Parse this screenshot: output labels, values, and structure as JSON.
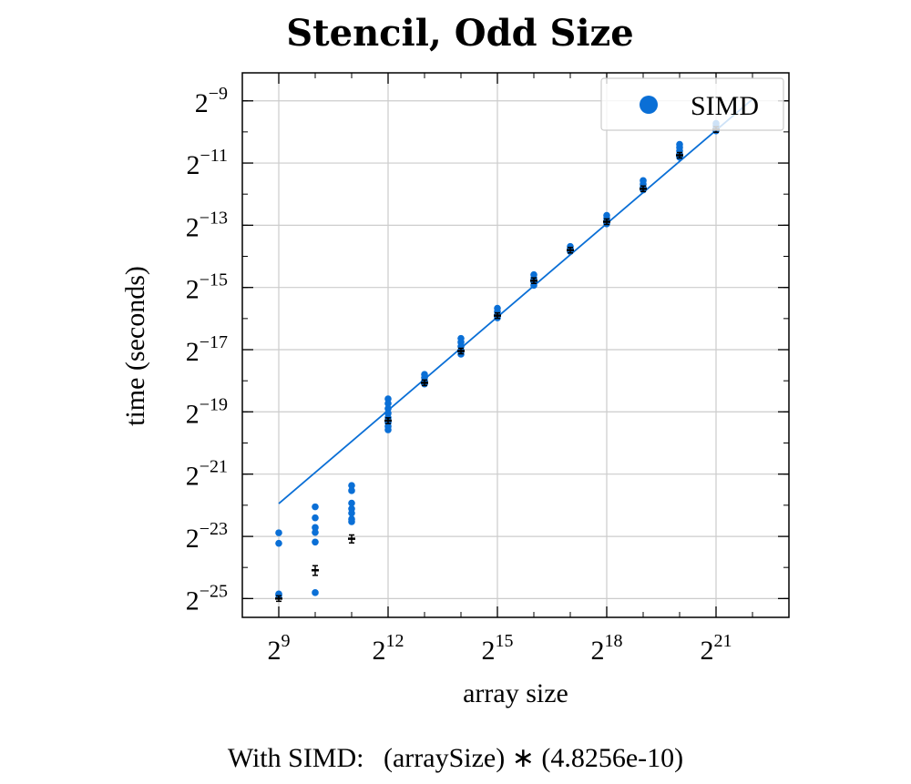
{
  "chart_data": {
    "type": "scatter",
    "title": "Stencil, Odd Size",
    "xlabel": "array size",
    "ylabel": "time (seconds)",
    "x_scale": "log2",
    "y_scale": "log2",
    "xlim": [
      256,
      8388608
    ],
    "ylim": [
      1.96e-08,
      0.00364
    ],
    "x_tick_values": [
      512,
      4096,
      32768,
      262144,
      2097152
    ],
    "x_tick_base": "2",
    "x_tick_exponents": [
      "9",
      "12",
      "15",
      "18",
      "21"
    ],
    "y_tick_values": [
      2.98e-08,
      1.19e-07,
      4.77e-07,
      1.91e-06,
      7.63e-06,
      3.05e-05,
      0.000122,
      0.000488,
      0.00195
    ],
    "y_tick_base": "2",
    "y_tick_exponents": [
      "−25",
      "−23",
      "−21",
      "−19",
      "−17",
      "−15",
      "−13",
      "−11",
      "−9"
    ],
    "grid": true,
    "legend_position": "top-right",
    "series": [
      {
        "name": "SIMD",
        "color": "#0a6fd6",
        "points": [
          {
            "x": 512,
            "y": 1.29e-07
          },
          {
            "x": 512,
            "y": 1.02e-07
          },
          {
            "x": 512,
            "y": 3.3e-08
          },
          {
            "x": 512,
            "y": 3.2e-08
          },
          {
            "x": 1024,
            "y": 2.3e-07
          },
          {
            "x": 1024,
            "y": 1.8e-07
          },
          {
            "x": 1024,
            "y": 1.45e-07
          },
          {
            "x": 1024,
            "y": 1.3e-07
          },
          {
            "x": 1024,
            "y": 1.05e-07
          },
          {
            "x": 1024,
            "y": 3.4e-08
          },
          {
            "x": 2048,
            "y": 3.7e-07
          },
          {
            "x": 2048,
            "y": 3.3e-07
          },
          {
            "x": 2048,
            "y": 2.5e-07
          },
          {
            "x": 2048,
            "y": 2.2e-07
          },
          {
            "x": 2048,
            "y": 2e-07
          },
          {
            "x": 2048,
            "y": 1.75e-07
          },
          {
            "x": 2048,
            "y": 1.65e-07
          },
          {
            "x": 4096,
            "y": 2.55e-06
          },
          {
            "x": 4096,
            "y": 2.3e-06
          },
          {
            "x": 4096,
            "y": 2.05e-06
          },
          {
            "x": 4096,
            "y": 1.85e-06
          },
          {
            "x": 4096,
            "y": 1.68e-06
          },
          {
            "x": 4096,
            "y": 1.5e-06
          },
          {
            "x": 4096,
            "y": 1.38e-06
          },
          {
            "x": 4096,
            "y": 1.28e-06
          },
          {
            "x": 8192,
            "y": 4.4e-06
          },
          {
            "x": 8192,
            "y": 4.1e-06
          },
          {
            "x": 8192,
            "y": 3.8e-06
          },
          {
            "x": 8192,
            "y": 3.55e-06
          },
          {
            "x": 16384,
            "y": 9.8e-06
          },
          {
            "x": 16384,
            "y": 9e-06
          },
          {
            "x": 16384,
            "y": 8.2e-06
          },
          {
            "x": 16384,
            "y": 7.5e-06
          },
          {
            "x": 16384,
            "y": 6.9e-06
          },
          {
            "x": 32768,
            "y": 1.92e-05
          },
          {
            "x": 32768,
            "y": 1.78e-05
          },
          {
            "x": 32768,
            "y": 1.65e-05
          },
          {
            "x": 32768,
            "y": 1.55e-05
          },
          {
            "x": 65536,
            "y": 4.05e-05
          },
          {
            "x": 65536,
            "y": 3.75e-05
          },
          {
            "x": 65536,
            "y": 3.45e-05
          },
          {
            "x": 65536,
            "y": 3.2e-05
          },
          {
            "x": 131072,
            "y": 7.6e-05
          },
          {
            "x": 131072,
            "y": 7.2e-05
          },
          {
            "x": 131072,
            "y": 6.8e-05
          },
          {
            "x": 262144,
            "y": 0.000152
          },
          {
            "x": 262144,
            "y": 0.000142
          },
          {
            "x": 262144,
            "y": 0.000133
          },
          {
            "x": 262144,
            "y": 0.000126
          },
          {
            "x": 524288,
            "y": 0.00033
          },
          {
            "x": 524288,
            "y": 0.000305
          },
          {
            "x": 524288,
            "y": 0.000285
          },
          {
            "x": 524288,
            "y": 0.000268
          },
          {
            "x": 1048576,
            "y": 0.00074
          },
          {
            "x": 1048576,
            "y": 0.00069
          },
          {
            "x": 1048576,
            "y": 0.00064
          },
          {
            "x": 1048576,
            "y": 0.000595
          },
          {
            "x": 1048576,
            "y": 0.000555
          },
          {
            "x": 2097152,
            "y": 0.00118
          },
          {
            "x": 2097152,
            "y": 0.00112
          },
          {
            "x": 2097152,
            "y": 0.00106
          },
          {
            "x": 2097152,
            "y": 0.001
          }
        ]
      }
    ],
    "means": [
      {
        "x": 512,
        "y": 2.98e-08,
        "err": 1e-09
      },
      {
        "x": 1024,
        "y": 5.6e-08,
        "err": 6e-09
      },
      {
        "x": 2048,
        "y": 1.13e-07,
        "err": 1e-08
      },
      {
        "x": 4096,
        "y": 1.57e-06,
        "err": 1e-07
      },
      {
        "x": 8192,
        "y": 3.65e-06,
        "err": 1e-07
      },
      {
        "x": 16384,
        "y": 7.4e-06,
        "err": 2e-07
      },
      {
        "x": 32768,
        "y": 1.63e-05,
        "err": 3e-07
      },
      {
        "x": 65536,
        "y": 3.55e-05,
        "err": 6e-07
      },
      {
        "x": 131072,
        "y": 7e-05,
        "err": 8e-07
      },
      {
        "x": 262144,
        "y": 0.000132,
        "err": 2e-06
      },
      {
        "x": 524288,
        "y": 0.000275,
        "err": 4e-06
      },
      {
        "x": 1048576,
        "y": 0.00058,
        "err": 8e-06
      },
      {
        "x": 2097152,
        "y": 0.00103,
        "err": 1.5e-05
      }
    ],
    "fit": {
      "coefficient": 4.8256e-10,
      "x_range": [
        512,
        4194304
      ]
    },
    "legend": {
      "label": "SIMD"
    }
  },
  "formula": {
    "prefix": "With SIMD:",
    "expression": "(arraySize) ∗ (4.8256e-10)"
  },
  "colors": {
    "series": "#0a6fd6",
    "mean_marker": "#000000",
    "grid": "#cccccc",
    "frame": "#000000"
  }
}
